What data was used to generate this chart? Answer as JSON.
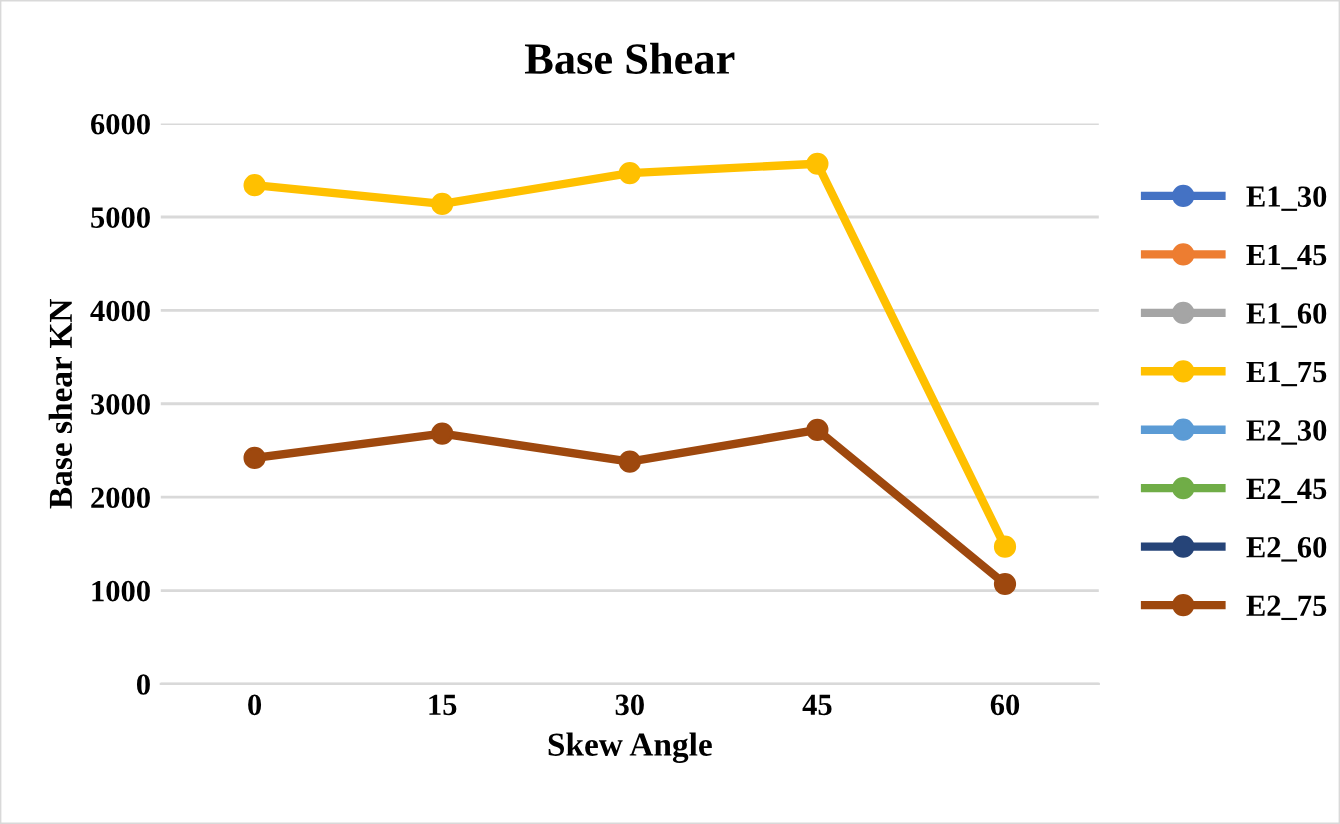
{
  "chart_data": {
    "type": "line",
    "title": "Base Shear",
    "xlabel": "Skew Angle",
    "ylabel": "Base shear KN",
    "categories": [
      "0",
      "15",
      "30",
      "45",
      "60"
    ],
    "ylim": [
      0,
      6000
    ],
    "yticks": [
      0,
      1000,
      2000,
      3000,
      4000,
      5000,
      6000
    ],
    "grid": "y",
    "legend": "right",
    "marker": "circle",
    "series": [
      {
        "name": "E1_30",
        "color": "#4472c4",
        "values": [
          null,
          null,
          null,
          null,
          null
        ]
      },
      {
        "name": "E1_45",
        "color": "#ed7d31",
        "values": [
          null,
          null,
          null,
          null,
          null
        ]
      },
      {
        "name": "E1_60",
        "color": "#a5a5a5",
        "values": [
          null,
          null,
          null,
          null,
          null
        ]
      },
      {
        "name": "E1_75",
        "color": "#ffc000",
        "values": [
          5340,
          5140,
          5470,
          5570,
          1470
        ]
      },
      {
        "name": "E2_30",
        "color": "#5b9bd5",
        "values": [
          null,
          null,
          null,
          null,
          null
        ]
      },
      {
        "name": "E2_45",
        "color": "#70ad47",
        "values": [
          null,
          null,
          null,
          null,
          null
        ]
      },
      {
        "name": "E2_60",
        "color": "#264478",
        "values": [
          null,
          null,
          null,
          null,
          null
        ]
      },
      {
        "name": "E2_75",
        "color": "#9e480e",
        "values": [
          2420,
          2680,
          2380,
          2720,
          1070
        ]
      }
    ]
  }
}
